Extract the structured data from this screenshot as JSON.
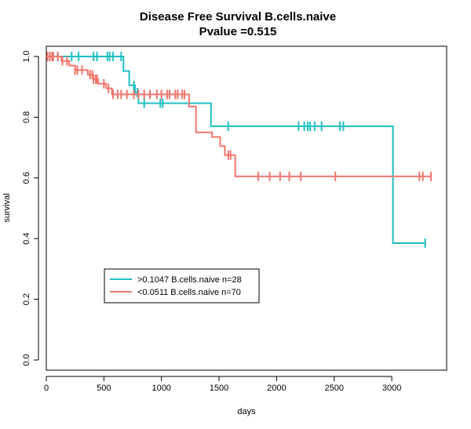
{
  "chart_data": {
    "type": "line",
    "title": "Disease Free Survival B.cells.naive",
    "subtitle": "Pvalue =0.515",
    "xlabel": "days",
    "ylabel": "survival",
    "xlim": [
      0,
      3400
    ],
    "ylim": [
      0,
      1.0
    ],
    "xticks": [
      0,
      500,
      1000,
      1500,
      2000,
      2500,
      3000
    ],
    "yticks": [
      0.0,
      0.2,
      0.4,
      0.6,
      0.8,
      1.0
    ],
    "xtick_labels": [
      "0",
      "500",
      "1000",
      "1500",
      "2000",
      "2500",
      "3000"
    ],
    "ytick_labels": [
      "0.0",
      "0.2",
      "0.4",
      "0.6",
      "0.8",
      "1.0"
    ],
    "grid": false,
    "legend_position": "bottom-left",
    "series": [
      {
        "name": ">0.1047 B.cells.naive n=28",
        "color": "#1fbfc3",
        "steps": [
          [
            0,
            1.0
          ],
          [
            670,
            1.0
          ],
          [
            670,
            0.952
          ],
          [
            720,
            0.952
          ],
          [
            720,
            0.905
          ],
          [
            770,
            0.905
          ],
          [
            770,
            0.881
          ],
          [
            800,
            0.881
          ],
          [
            800,
            0.846
          ],
          [
            1430,
            0.846
          ],
          [
            1430,
            0.77
          ],
          [
            3010,
            0.77
          ],
          [
            3010,
            0.385
          ],
          [
            3290,
            0.385
          ]
        ],
        "censor_x": [
          30,
          60,
          100,
          220,
          280,
          410,
          440,
          530,
          550,
          580,
          650,
          760,
          790,
          850,
          990,
          1010,
          1580,
          2190,
          2240,
          2270,
          2290,
          2330,
          2390,
          2550,
          2580,
          3290
        ]
      },
      {
        "name": "<0.0511 B.cells.naive n=70",
        "color": "#f2766d",
        "steps": [
          [
            0,
            1.0
          ],
          [
            130,
            1.0
          ],
          [
            130,
            0.985
          ],
          [
            200,
            0.985
          ],
          [
            200,
            0.97
          ],
          [
            250,
            0.97
          ],
          [
            250,
            0.955
          ],
          [
            360,
            0.955
          ],
          [
            360,
            0.94
          ],
          [
            410,
            0.94
          ],
          [
            410,
            0.925
          ],
          [
            450,
            0.925
          ],
          [
            450,
            0.91
          ],
          [
            520,
            0.91
          ],
          [
            520,
            0.895
          ],
          [
            570,
            0.895
          ],
          [
            570,
            0.875
          ],
          [
            1240,
            0.875
          ],
          [
            1240,
            0.835
          ],
          [
            1300,
            0.835
          ],
          [
            1300,
            0.75
          ],
          [
            1440,
            0.75
          ],
          [
            1440,
            0.735
          ],
          [
            1510,
            0.735
          ],
          [
            1510,
            0.705
          ],
          [
            1550,
            0.705
          ],
          [
            1550,
            0.675
          ],
          [
            1640,
            0.675
          ],
          [
            1640,
            0.605
          ],
          [
            3340,
            0.605
          ]
        ],
        "censor_x": [
          10,
          30,
          50,
          60,
          100,
          140,
          180,
          250,
          270,
          310,
          380,
          400,
          410,
          430,
          440,
          500,
          540,
          580,
          620,
          650,
          700,
          760,
          800,
          850,
          900,
          960,
          1000,
          1050,
          1070,
          1120,
          1140,
          1180,
          1200,
          1580,
          1600,
          1840,
          1940,
          2030,
          2110,
          2210,
          2510,
          3240,
          3270,
          3340
        ]
      }
    ]
  }
}
